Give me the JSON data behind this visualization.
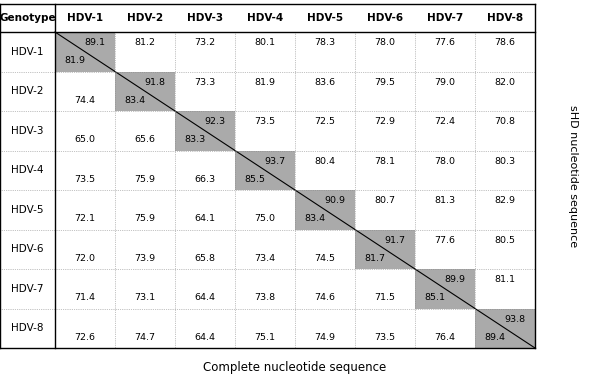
{
  "genotypes": [
    "HDV-1",
    "HDV-2",
    "HDV-3",
    "HDV-4",
    "HDV-5",
    "HDV-6",
    "HDV-7",
    "HDV-8"
  ],
  "above_diagonal": {
    "HDV-1": {
      "HDV-1": 89.1,
      "HDV-2": 81.2,
      "HDV-3": 73.2,
      "HDV-4": 80.1,
      "HDV-5": 78.3,
      "HDV-6": 78.0,
      "HDV-7": 77.6,
      "HDV-8": 78.6
    },
    "HDV-2": {
      "HDV-2": 91.8,
      "HDV-3": 73.3,
      "HDV-4": 81.9,
      "HDV-5": 83.6,
      "HDV-6": 79.5,
      "HDV-7": 79.0,
      "HDV-8": 82.0
    },
    "HDV-3": {
      "HDV-3": 92.3,
      "HDV-4": 73.5,
      "HDV-5": 72.5,
      "HDV-6": 72.9,
      "HDV-7": 72.4,
      "HDV-8": 70.8
    },
    "HDV-4": {
      "HDV-4": 93.7,
      "HDV-5": 80.4,
      "HDV-6": 78.1,
      "HDV-7": 78.0,
      "HDV-8": 80.3
    },
    "HDV-5": {
      "HDV-5": 90.9,
      "HDV-6": 80.7,
      "HDV-7": 81.3,
      "HDV-8": 82.9
    },
    "HDV-6": {
      "HDV-6": 91.7,
      "HDV-7": 77.6,
      "HDV-8": 80.5
    },
    "HDV-7": {
      "HDV-7": 89.9,
      "HDV-8": 81.1
    },
    "HDV-8": {
      "HDV-8": 93.8
    }
  },
  "below_diagonal": {
    "HDV-2": {
      "HDV-1": 74.4
    },
    "HDV-3": {
      "HDV-1": 65.0,
      "HDV-2": 65.6
    },
    "HDV-4": {
      "HDV-1": 73.5,
      "HDV-2": 75.9,
      "HDV-3": 66.3
    },
    "HDV-5": {
      "HDV-1": 72.1,
      "HDV-2": 75.9,
      "HDV-3": 64.1,
      "HDV-4": 75.0
    },
    "HDV-6": {
      "HDV-1": 72.0,
      "HDV-2": 73.9,
      "HDV-3": 65.8,
      "HDV-4": 73.4,
      "HDV-5": 74.5
    },
    "HDV-7": {
      "HDV-1": 71.4,
      "HDV-2": 73.1,
      "HDV-3": 64.4,
      "HDV-4": 73.8,
      "HDV-5": 74.6,
      "HDV-6": 71.5
    },
    "HDV-8": {
      "HDV-1": 72.6,
      "HDV-2": 74.7,
      "HDV-3": 64.4,
      "HDV-4": 75.1,
      "HDV-5": 74.9,
      "HDV-6": 73.5,
      "HDV-7": 76.4
    }
  },
  "diagonal_below": {
    "HDV-1": 81.9,
    "HDV-2": 83.4,
    "HDV-3": 83.3,
    "HDV-4": 85.5,
    "HDV-5": 83.4,
    "HDV-6": 81.7,
    "HDV-7": 85.1,
    "HDV-8": 89.4
  },
  "gray_color": "#aaaaaa",
  "ylabel": "sHD nucleotide sequence",
  "xlabel": "Complete nucleotide sequence",
  "col_header": "Genotype"
}
